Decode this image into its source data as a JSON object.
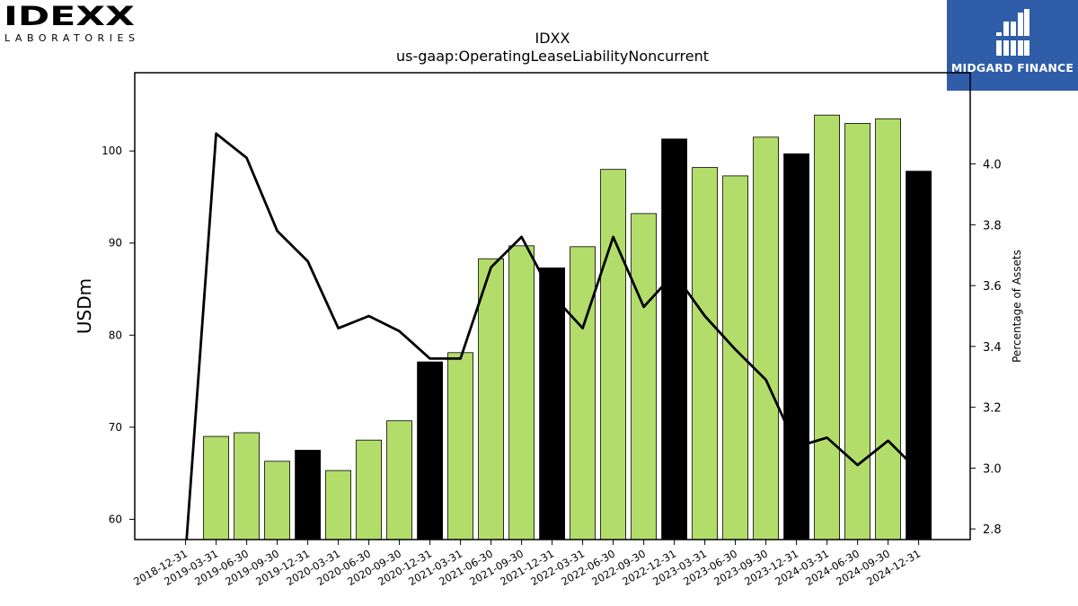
{
  "brand": {
    "left_logo_wordmark": "IDEXX",
    "left_logo_subtitle": "LABORATORIES",
    "right_logo_text": "MIDGARD FINANCE",
    "right_logo_bg": "#2f5da8"
  },
  "chart_data": {
    "type": "bar",
    "title": "IDXX",
    "subtitle": "us-gaap:OperatingLeaseLiabilityNoncurrent",
    "ylabel": "USDm",
    "y2label": "Percentage of Assets",
    "ylim": [
      57.8,
      108.5
    ],
    "y2lim": [
      2.765,
      4.3
    ],
    "yticks": [
      60,
      70,
      80,
      90,
      100
    ],
    "y2ticks": [
      "2.8",
      "3.0",
      "3.2",
      "3.4",
      "3.6",
      "3.8",
      "4.0"
    ],
    "categories": [
      "2018-12-31",
      "2019-03-31",
      "2019-06-30",
      "2019-09-30",
      "2019-12-31",
      "2020-03-31",
      "2020-06-30",
      "2020-09-30",
      "2020-12-31",
      "2021-03-31",
      "2021-06-30",
      "2021-09-30",
      "2021-12-31",
      "2022-03-31",
      "2022-06-30",
      "2022-09-30",
      "2022-12-31",
      "2023-03-31",
      "2023-06-30",
      "2023-09-30",
      "2023-12-31",
      "2024-03-31",
      "2024-06-30",
      "2024-09-30",
      "2024-12-31"
    ],
    "series": [
      {
        "axis": "left",
        "kind": "bar",
        "values": [
          null,
          69.0,
          69.4,
          66.3,
          67.5,
          65.3,
          68.6,
          70.7,
          77.1,
          78.1,
          88.3,
          89.7,
          87.3,
          89.6,
          98.0,
          93.2,
          101.3,
          98.2,
          97.3,
          101.5,
          99.7,
          103.9,
          103.0,
          103.5,
          97.8
        ],
        "highlight": [
          false,
          false,
          false,
          false,
          true,
          false,
          false,
          false,
          true,
          false,
          false,
          false,
          true,
          false,
          false,
          false,
          true,
          false,
          false,
          false,
          true,
          false,
          false,
          false,
          true
        ]
      },
      {
        "axis": "right",
        "kind": "line",
        "values": [
          2.72,
          4.1,
          4.02,
          3.78,
          3.68,
          3.46,
          3.5,
          3.45,
          3.36,
          3.36,
          3.66,
          3.76,
          3.57,
          3.46,
          3.76,
          3.53,
          3.64,
          3.5,
          3.39,
          3.29,
          3.07,
          3.1,
          3.01,
          3.09,
          2.99
        ]
      }
    ],
    "colors": {
      "bar_default": "#b3dd6a",
      "bar_highlight": "#000000",
      "line": "#000000"
    },
    "grid": false,
    "legend": "none"
  }
}
